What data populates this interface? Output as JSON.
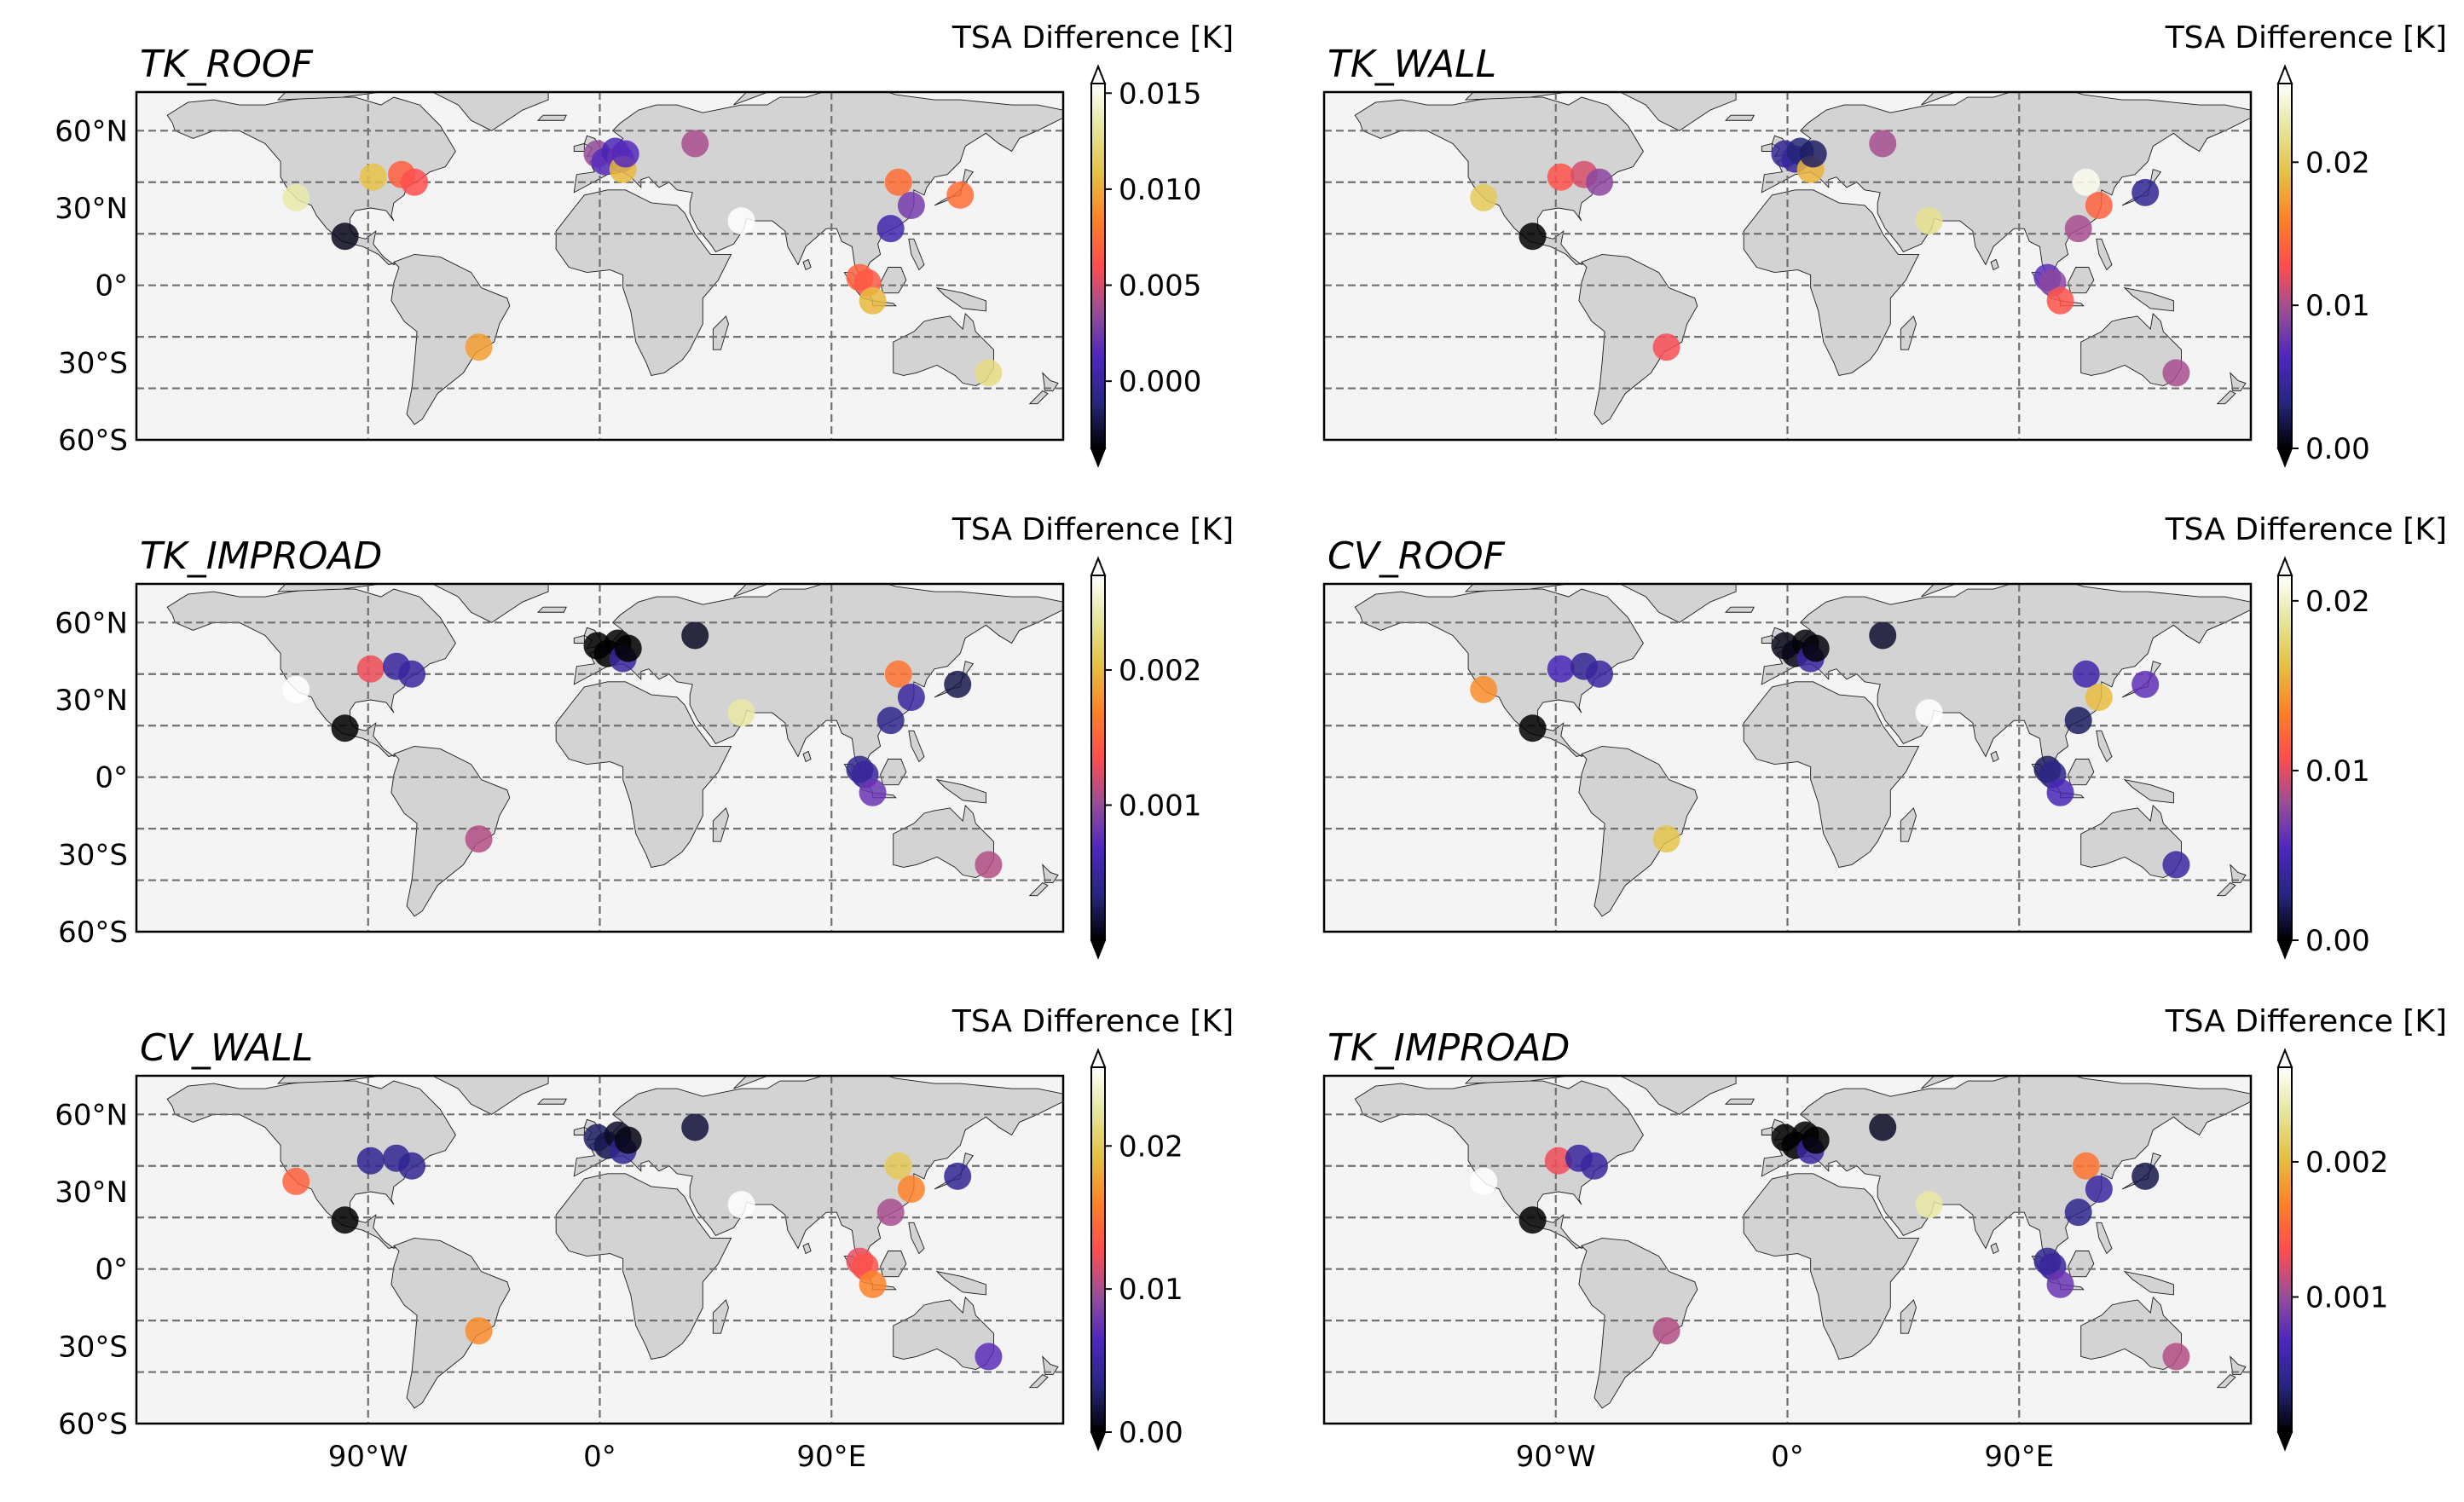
{
  "figure": {
    "colormap": "CMRmap",
    "map_style": {
      "ocean": "#f4f4f4",
      "land": "#d3d3d3",
      "gridline": "#707070"
    },
    "lon_range": [
      -180,
      180
    ],
    "lat_range": [
      -60,
      75
    ],
    "x_ticks": [
      {
        "lon": -90,
        "label": "90°W"
      },
      {
        "lon": 0,
        "label": "0°"
      },
      {
        "lon": 90,
        "label": "90°E"
      }
    ],
    "y_ticks": [
      {
        "lat": 60,
        "label": "60°N"
      },
      {
        "lat": 30,
        "label": "30°N"
      },
      {
        "lat": 0,
        "label": "0°"
      },
      {
        "lat": -30,
        "label": "30°S"
      },
      {
        "lat": -60,
        "label": "60°S"
      }
    ],
    "grid_lats": [
      60,
      40,
      20,
      0,
      -20,
      -40
    ],
    "grid_lons": [
      -90,
      0,
      90
    ]
  },
  "chart_data": [
    {
      "type": "scatter",
      "title": "TK_ROOF",
      "colorbar_label": "TSA Difference [K]",
      "colorbar": {
        "vmin": -0.0035,
        "vmax": 0.0155,
        "ticks": [
          0.0,
          0.005,
          0.01,
          0.015
        ],
        "tick_labels": [
          "0.000",
          "0.005",
          "0.010",
          "0.015"
        ]
      },
      "points": [
        {
          "lon": -118,
          "lat": 34,
          "value": 0.0135
        },
        {
          "lon": -99,
          "lat": 19,
          "value": -0.003
        },
        {
          "lon": -88,
          "lat": 42,
          "value": 0.011
        },
        {
          "lon": -77,
          "lat": 43,
          "value": 0.0068
        },
        {
          "lon": -72,
          "lat": 40,
          "value": 0.006
        },
        {
          "lon": -47,
          "lat": -24,
          "value": 0.0095
        },
        {
          "lon": -1,
          "lat": 51,
          "value": 0.0035
        },
        {
          "lon": 2,
          "lat": 48,
          "value": 0.0015
        },
        {
          "lon": 6,
          "lat": 52,
          "value": 0.0008
        },
        {
          "lon": 8,
          "lat": 49,
          "value": 0.002
        },
        {
          "lon": 9,
          "lat": 45,
          "value": 0.0105
        },
        {
          "lon": 10,
          "lat": 51,
          "value": 0.0015
        },
        {
          "lon": 37,
          "lat": 55,
          "value": 0.004
        },
        {
          "lon": 55,
          "lat": 25,
          "value": 0.0155
        },
        {
          "lon": 116,
          "lat": 40,
          "value": 0.0075
        },
        {
          "lon": 121,
          "lat": 31,
          "value": 0.0025
        },
        {
          "lon": 113,
          "lat": 22,
          "value": 0.0005
        },
        {
          "lon": 140,
          "lat": 35,
          "value": 0.0075
        },
        {
          "lon": 101,
          "lat": 3,
          "value": 0.007
        },
        {
          "lon": 104,
          "lat": 1,
          "value": 0.0065
        },
        {
          "lon": 106,
          "lat": -6,
          "value": 0.0105
        },
        {
          "lon": 151,
          "lat": -34,
          "value": 0.0125
        }
      ]
    },
    {
      "type": "scatter",
      "title": "TK_WALL",
      "colorbar_label": "TSA Difference [K]",
      "colorbar": {
        "vmin": 0.0,
        "vmax": 0.0255,
        "ticks": [
          0.0,
          0.01,
          0.02
        ],
        "tick_labels": [
          "0.00",
          "0.01",
          "0.02"
        ]
      },
      "points": [
        {
          "lon": -118,
          "lat": 34,
          "value": 0.02
        },
        {
          "lon": -99,
          "lat": 19,
          "value": 0.0
        },
        {
          "lon": -88,
          "lat": 42,
          "value": 0.013
        },
        {
          "lon": -79,
          "lat": 43,
          "value": 0.0115
        },
        {
          "lon": -73,
          "lat": 40,
          "value": 0.009
        },
        {
          "lon": -47,
          "lat": -24,
          "value": 0.0125
        },
        {
          "lon": -1,
          "lat": 51,
          "value": 0.004
        },
        {
          "lon": 3,
          "lat": 49,
          "value": 0.0045
        },
        {
          "lon": 5,
          "lat": 52,
          "value": 0.003
        },
        {
          "lon": 9,
          "lat": 45,
          "value": 0.0185
        },
        {
          "lon": 10,
          "lat": 51,
          "value": 0.0025
        },
        {
          "lon": 37,
          "lat": 55,
          "value": 0.01
        },
        {
          "lon": 55,
          "lat": 25,
          "value": 0.022
        },
        {
          "lon": 116,
          "lat": 40,
          "value": 0.025
        },
        {
          "lon": 121,
          "lat": 31,
          "value": 0.014
        },
        {
          "lon": 113,
          "lat": 22,
          "value": 0.01
        },
        {
          "lon": 139,
          "lat": 36,
          "value": 0.004
        },
        {
          "lon": 101,
          "lat": 3,
          "value": 0.007
        },
        {
          "lon": 103,
          "lat": 1,
          "value": 0.009
        },
        {
          "lon": 106,
          "lat": -6,
          "value": 0.013
        },
        {
          "lon": 151,
          "lat": -34,
          "value": 0.01
        }
      ]
    },
    {
      "type": "scatter",
      "title": "TK_IMPROAD",
      "colorbar_label": "TSA Difference [K]",
      "colorbar": {
        "vmin": 0.0,
        "vmax": 0.0027,
        "ticks": [
          0.001,
          0.002
        ],
        "tick_labels": [
          "0.001",
          "0.002"
        ]
      },
      "points": [
        {
          "lon": -118,
          "lat": 34,
          "value": 0.0027
        },
        {
          "lon": -99,
          "lat": 19,
          "value": 0.0
        },
        {
          "lon": -89,
          "lat": 42,
          "value": 0.0013
        },
        {
          "lon": -79,
          "lat": 43,
          "value": 0.0005
        },
        {
          "lon": -73,
          "lat": 40,
          "value": 0.0005
        },
        {
          "lon": -47,
          "lat": -24,
          "value": 0.0011
        },
        {
          "lon": -1,
          "lat": 51,
          "value": 0.0
        },
        {
          "lon": 3,
          "lat": 48,
          "value": 0.0
        },
        {
          "lon": 7,
          "lat": 52,
          "value": 0.0
        },
        {
          "lon": 9,
          "lat": 46,
          "value": 0.0005
        },
        {
          "lon": 11,
          "lat": 50,
          "value": 0.0
        },
        {
          "lon": 37,
          "lat": 55,
          "value": 0.0001
        },
        {
          "lon": 55,
          "lat": 25,
          "value": 0.0024
        },
        {
          "lon": 116,
          "lat": 40,
          "value": 0.0016
        },
        {
          "lon": 121,
          "lat": 31,
          "value": 0.0005
        },
        {
          "lon": 139,
          "lat": 36,
          "value": 0.0002
        },
        {
          "lon": 113,
          "lat": 22,
          "value": 0.0004
        },
        {
          "lon": 101,
          "lat": 3,
          "value": 0.0004
        },
        {
          "lon": 103,
          "lat": 1,
          "value": 0.0005
        },
        {
          "lon": 106,
          "lat": -6,
          "value": 0.0008
        },
        {
          "lon": 151,
          "lat": -34,
          "value": 0.0011
        }
      ]
    },
    {
      "type": "scatter",
      "title": "CV_ROOF",
      "colorbar_label": "TSA Difference [K]",
      "colorbar": {
        "vmin": 0.0,
        "vmax": 0.0215,
        "ticks": [
          0.0,
          0.01,
          0.02
        ],
        "tick_labels": [
          "0.00",
          "0.01",
          "0.02"
        ]
      },
      "points": [
        {
          "lon": -118,
          "lat": 34,
          "value": 0.014
        },
        {
          "lon": -99,
          "lat": 19,
          "value": 0.0
        },
        {
          "lon": -88,
          "lat": 42,
          "value": 0.005
        },
        {
          "lon": -79,
          "lat": 43,
          "value": 0.0035
        },
        {
          "lon": -73,
          "lat": 40,
          "value": 0.004
        },
        {
          "lon": -47,
          "lat": -24,
          "value": 0.0165
        },
        {
          "lon": -1,
          "lat": 51,
          "value": 0.0005
        },
        {
          "lon": 3,
          "lat": 48,
          "value": 0.0005
        },
        {
          "lon": 7,
          "lat": 52,
          "value": 0.0002
        },
        {
          "lon": 9,
          "lat": 46,
          "value": 0.004
        },
        {
          "lon": 11,
          "lat": 50,
          "value": 0.0002
        },
        {
          "lon": 37,
          "lat": 55,
          "value": 0.001
        },
        {
          "lon": 55,
          "lat": 25,
          "value": 0.0215
        },
        {
          "lon": 116,
          "lat": 40,
          "value": 0.0045
        },
        {
          "lon": 121,
          "lat": 31,
          "value": 0.016
        },
        {
          "lon": 113,
          "lat": 22,
          "value": 0.002
        },
        {
          "lon": 139,
          "lat": 36,
          "value": 0.006
        },
        {
          "lon": 101,
          "lat": 3,
          "value": 0.002
        },
        {
          "lon": 103,
          "lat": 1,
          "value": 0.003
        },
        {
          "lon": 106,
          "lat": -6,
          "value": 0.005
        },
        {
          "lon": 151,
          "lat": -34,
          "value": 0.004
        }
      ]
    },
    {
      "type": "scatter",
      "title": "CV_WALL",
      "colorbar_label": "TSA Difference [K]",
      "colorbar": {
        "vmin": 0.0,
        "vmax": 0.0255,
        "ticks": [
          0.0,
          0.01,
          0.02
        ],
        "tick_labels": [
          "0.00",
          "0.01",
          "0.02"
        ]
      },
      "points": [
        {
          "lon": -118,
          "lat": 34,
          "value": 0.014
        },
        {
          "lon": -99,
          "lat": 19,
          "value": 0.0
        },
        {
          "lon": -89,
          "lat": 42,
          "value": 0.004
        },
        {
          "lon": -79,
          "lat": 43,
          "value": 0.004
        },
        {
          "lon": -73,
          "lat": 40,
          "value": 0.004
        },
        {
          "lon": -47,
          "lat": -24,
          "value": 0.0165
        },
        {
          "lon": -1,
          "lat": 51,
          "value": 0.0025
        },
        {
          "lon": 3,
          "lat": 48,
          "value": 0.002
        },
        {
          "lon": 7,
          "lat": 52,
          "value": 0.001
        },
        {
          "lon": 9,
          "lat": 46,
          "value": 0.004
        },
        {
          "lon": 11,
          "lat": 50,
          "value": 0.0005
        },
        {
          "lon": 37,
          "lat": 55,
          "value": 0.0015
        },
        {
          "lon": 55,
          "lat": 25,
          "value": 0.0255
        },
        {
          "lon": 116,
          "lat": 40,
          "value": 0.02
        },
        {
          "lon": 121,
          "lat": 31,
          "value": 0.016
        },
        {
          "lon": 113,
          "lat": 22,
          "value": 0.01
        },
        {
          "lon": 139,
          "lat": 36,
          "value": 0.004
        },
        {
          "lon": 101,
          "lat": 3,
          "value": 0.012
        },
        {
          "lon": 103,
          "lat": 1,
          "value": 0.013
        },
        {
          "lon": 106,
          "lat": -6,
          "value": 0.016
        },
        {
          "lon": 151,
          "lat": -34,
          "value": 0.007
        }
      ]
    },
    {
      "type": "scatter",
      "title": "TK_IMPROAD",
      "colorbar_label": "TSA Difference [K]",
      "colorbar": {
        "vmin": 0.0,
        "vmax": 0.0027,
        "ticks": [
          0.001,
          0.002
        ],
        "tick_labels": [
          "0.001",
          "0.002"
        ]
      },
      "points": [
        {
          "lon": -118,
          "lat": 34,
          "value": 0.0027
        },
        {
          "lon": -99,
          "lat": 19,
          "value": 0.0
        },
        {
          "lon": -89,
          "lat": 42,
          "value": 0.0013
        },
        {
          "lon": -81,
          "lat": 43,
          "value": 0.0005
        },
        {
          "lon": -75,
          "lat": 40,
          "value": 0.0005
        },
        {
          "lon": -47,
          "lat": -24,
          "value": 0.0011
        },
        {
          "lon": -1,
          "lat": 51,
          "value": 0.0
        },
        {
          "lon": 3,
          "lat": 48,
          "value": 0.0
        },
        {
          "lon": 7,
          "lat": 52,
          "value": 0.0
        },
        {
          "lon": 9,
          "lat": 46,
          "value": 0.0005
        },
        {
          "lon": 11,
          "lat": 50,
          "value": 0.0
        },
        {
          "lon": 37,
          "lat": 55,
          "value": 0.0001
        },
        {
          "lon": 55,
          "lat": 25,
          "value": 0.0024
        },
        {
          "lon": 116,
          "lat": 40,
          "value": 0.0016
        },
        {
          "lon": 121,
          "lat": 31,
          "value": 0.0005
        },
        {
          "lon": 139,
          "lat": 36,
          "value": 0.0002
        },
        {
          "lon": 113,
          "lat": 22,
          "value": 0.0004
        },
        {
          "lon": 101,
          "lat": 3,
          "value": 0.0004
        },
        {
          "lon": 103,
          "lat": 1,
          "value": 0.0005
        },
        {
          "lon": 106,
          "lat": -6,
          "value": 0.0008
        },
        {
          "lon": 151,
          "lat": -34,
          "value": 0.0011
        }
      ]
    }
  ]
}
